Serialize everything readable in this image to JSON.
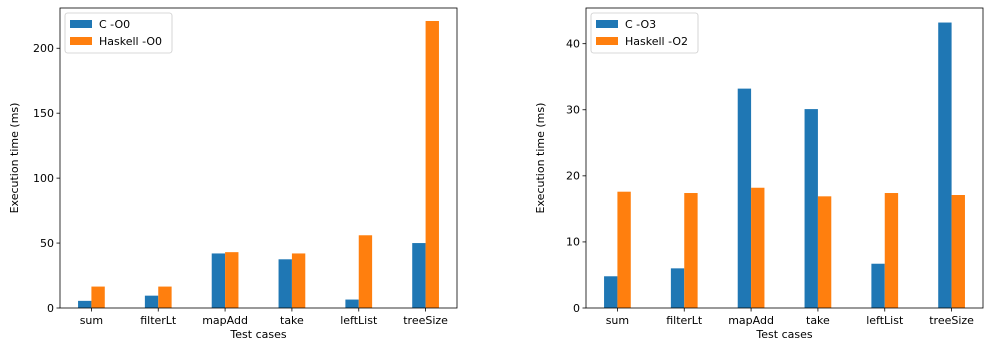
{
  "chart_data": [
    {
      "type": "bar",
      "categories": [
        "sum",
        "filterLt",
        "mapAdd",
        "take",
        "leftList",
        "treeSize"
      ],
      "series": [
        {
          "name": "C -O0",
          "color": "#1f77b4",
          "values": [
            5.5,
            9.5,
            42,
            37.5,
            6.5,
            50
          ]
        },
        {
          "name": "Haskell -O0",
          "color": "#ff7f0e",
          "values": [
            16.5,
            16.5,
            43,
            42,
            56,
            221
          ]
        }
      ],
      "xlabel": "Test cases",
      "ylabel": "Execution time (ms)",
      "ylim": [
        0,
        231
      ],
      "yticks": [
        0,
        50,
        100,
        150,
        200
      ],
      "legend": "top-left",
      "grid": false
    },
    {
      "type": "bar",
      "categories": [
        "sum",
        "filterLt",
        "mapAdd",
        "take",
        "leftList",
        "treeSize"
      ],
      "series": [
        {
          "name": "C -O3",
          "color": "#1f77b4",
          "values": [
            4.8,
            6,
            33.2,
            30.1,
            6.7,
            43.2
          ]
        },
        {
          "name": "Haskell -O2",
          "color": "#ff7f0e",
          "values": [
            17.6,
            17.4,
            18.2,
            16.9,
            17.4,
            17.1
          ]
        }
      ],
      "xlabel": "Test cases",
      "ylabel": "Execution time (ms)",
      "ylim": [
        0,
        45.4
      ],
      "yticks": [
        0,
        10,
        20,
        30,
        40
      ],
      "legend": "top-left",
      "grid": false
    }
  ]
}
